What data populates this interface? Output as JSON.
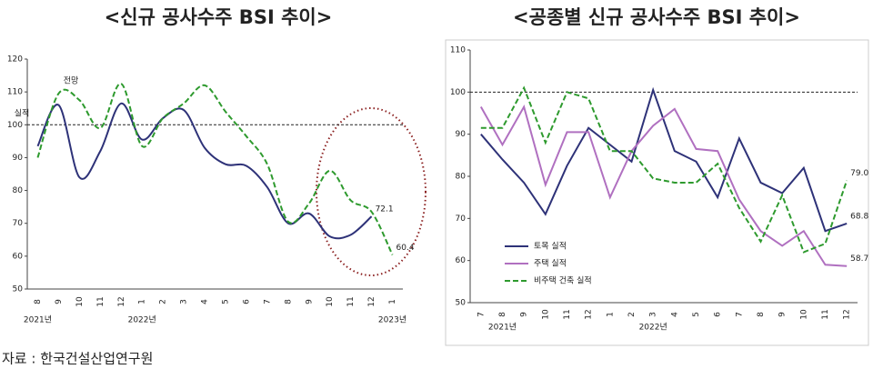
{
  "chart_data": [
    {
      "type": "line",
      "title": "<신규 공사수주 BSI 추이>",
      "smooth": true,
      "categories": [
        "8",
        "9",
        "10",
        "11",
        "12",
        "1",
        "2",
        "3",
        "4",
        "5",
        "6",
        "7",
        "8",
        "9",
        "10",
        "11",
        "12",
        "1"
      ],
      "years": [
        "2021년",
        "2022년",
        "2023년"
      ],
      "series": [
        {
          "name": "실적",
          "color": "#2e3278",
          "dash": false,
          "values": [
            93.5,
            106,
            84,
            92,
            106.5,
            95.5,
            102,
            104.5,
            93,
            88,
            87.5,
            81,
            70,
            73,
            66,
            66.5,
            72.1,
            null
          ],
          "value_labels": [
            null,
            null,
            null,
            null,
            null,
            null,
            null,
            null,
            null,
            null,
            null,
            null,
            null,
            null,
            null,
            null,
            "72.1",
            null
          ]
        },
        {
          "name": "전망",
          "color": "#2e9a2e",
          "dash": true,
          "values": [
            90,
            109.5,
            107.5,
            99,
            112.5,
            93.5,
            102,
            106.5,
            112,
            104,
            96.5,
            88,
            70.5,
            76,
            86,
            77,
            73.5,
            60.4
          ],
          "value_labels": [
            null,
            null,
            null,
            null,
            null,
            null,
            null,
            null,
            null,
            null,
            null,
            null,
            null,
            null,
            null,
            null,
            null,
            "60.4"
          ]
        }
      ],
      "ylim": [
        50,
        120
      ],
      "yticks": [
        50,
        60,
        70,
        80,
        90,
        100,
        110,
        120
      ],
      "refline": 100
    },
    {
      "type": "line",
      "title": "<공종별 신규 공사수주 BSI 추이>",
      "smooth": false,
      "categories": [
        "7",
        "8",
        "9",
        "10",
        "11",
        "12",
        "1",
        "2",
        "3",
        "4",
        "5",
        "6",
        "7",
        "8",
        "9",
        "10",
        "11",
        "12"
      ],
      "years": [
        "2021년",
        "2022년"
      ],
      "legend": "bottom-left",
      "series": [
        {
          "name": "토목 실적",
          "color": "#2e3278",
          "dash": false,
          "values": [
            90,
            84,
            78.5,
            71,
            82.5,
            91.5,
            87.5,
            83.5,
            100.5,
            86,
            83.5,
            75,
            89,
            78.5,
            76,
            82,
            67,
            68.8
          ],
          "value_labels": [
            null,
            null,
            null,
            null,
            null,
            null,
            null,
            null,
            null,
            null,
            null,
            null,
            null,
            null,
            null,
            null,
            null,
            "68.8"
          ]
        },
        {
          "name": "주택 실적",
          "color": "#b070c0",
          "dash": false,
          "values": [
            96.5,
            87.5,
            96.5,
            78,
            90.5,
            90.5,
            75,
            86,
            92,
            96,
            86.5,
            86,
            74.5,
            67,
            63.5,
            67,
            59,
            58.7
          ],
          "value_labels": [
            null,
            null,
            null,
            null,
            null,
            null,
            null,
            null,
            null,
            null,
            null,
            null,
            null,
            null,
            null,
            null,
            null,
            "58.7"
          ]
        },
        {
          "name": "비주택 건축 실적",
          "color": "#2e9a2e",
          "dash": true,
          "values": [
            91.5,
            91.5,
            101,
            88,
            100,
            98.5,
            86,
            86,
            79.5,
            78.5,
            78.5,
            83,
            72.5,
            64.5,
            75.5,
            62,
            64,
            79.0
          ],
          "value_labels": [
            null,
            null,
            null,
            null,
            null,
            null,
            null,
            null,
            null,
            null,
            null,
            null,
            null,
            null,
            null,
            null,
            null,
            "79.0"
          ]
        }
      ],
      "ylim": [
        50,
        110
      ],
      "yticks": [
        50,
        60,
        70,
        80,
        90,
        100,
        110
      ],
      "refline": 100
    }
  ],
  "source": "자료 : 한국건설산업연구원"
}
